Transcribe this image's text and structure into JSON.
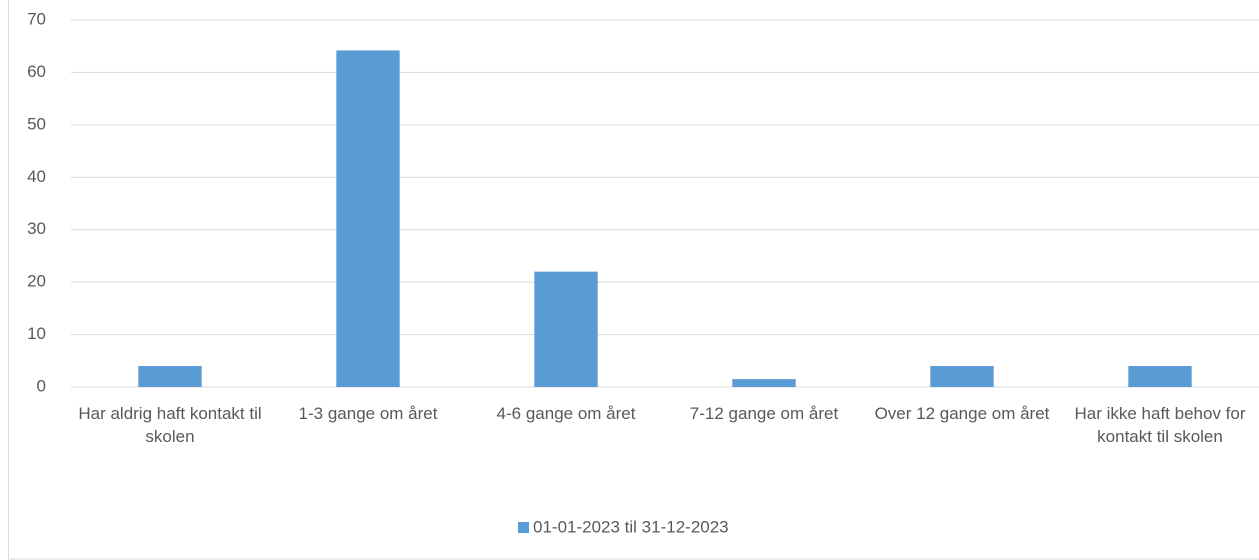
{
  "chart_data": {
    "type": "bar",
    "categories": [
      "Har aldrig haft kontakt til skolen",
      "1-3 gange om året",
      "4-6 gange om året",
      "7-12 gange om året",
      "Over 12 gange om året",
      "Har ikke haft behov for kontakt til skolen"
    ],
    "series": [
      {
        "name": "01-01-2023 til 31-12-2023",
        "color": "#5b9bd5",
        "values": [
          4,
          64.2,
          22,
          1.5,
          4,
          4
        ]
      }
    ],
    "ylim": [
      0,
      70
    ],
    "yticks": [
      0,
      10,
      20,
      30,
      40,
      50,
      60,
      70
    ],
    "grid": true,
    "legend": "bottom"
  }
}
